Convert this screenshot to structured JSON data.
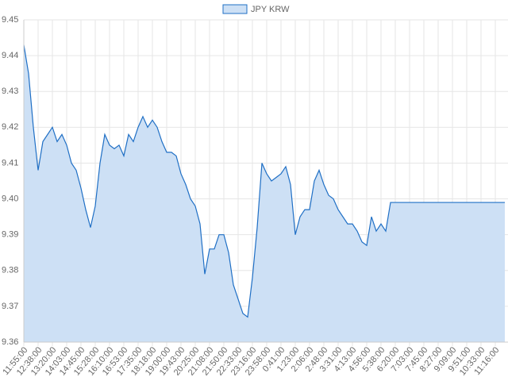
{
  "chart_data": {
    "type": "line",
    "categories": [
      "11:55:00",
      null,
      null,
      "12:38:00",
      null,
      null,
      "13:20:00",
      null,
      null,
      "14:03:00",
      null,
      null,
      "14:45:00",
      null,
      null,
      "15:28:00",
      null,
      null,
      "16:10:00",
      null,
      null,
      "16:53:00",
      null,
      null,
      "17:35:00",
      null,
      null,
      "18:18:00",
      null,
      null,
      "19:00:00",
      null,
      null,
      "19:43:00",
      null,
      null,
      "20:25:00",
      null,
      null,
      "21:08:00",
      null,
      null,
      "21:50:00",
      null,
      null,
      "22:33:00",
      null,
      null,
      "23:16:00",
      null,
      null,
      "23:58:00",
      null,
      null,
      "0:41:00",
      null,
      null,
      "1:23:00",
      null,
      null,
      "2:06:00",
      null,
      null,
      "2:48:00",
      null,
      null,
      "3:31:00",
      null,
      null,
      "4:13:00",
      null,
      null,
      "4:56:00",
      null,
      null,
      "5:38:00",
      null,
      null,
      "6:20:00",
      null,
      null,
      "7:03:00",
      null,
      null,
      "7:45:00",
      null,
      null,
      "8:27:00",
      null,
      null,
      "9:09:00",
      null,
      null,
      "9:51:00",
      null,
      null,
      "10:33:00",
      null,
      null,
      "11:16:00",
      null,
      null
    ],
    "series": [
      {
        "name": "JPY KRW",
        "color": "#1f6fc5",
        "fill_color": "#cde0f5",
        "values": [
          9.443,
          9.435,
          9.42,
          9.408,
          9.416,
          9.418,
          9.42,
          9.416,
          9.418,
          9.415,
          9.41,
          9.408,
          9.403,
          9.397,
          9.392,
          9.398,
          9.41,
          9.418,
          9.415,
          9.414,
          9.415,
          9.412,
          9.418,
          9.416,
          9.42,
          9.423,
          9.42,
          9.422,
          9.42,
          9.416,
          9.413,
          9.413,
          9.412,
          9.407,
          9.404,
          9.4,
          9.398,
          9.393,
          9.379,
          9.386,
          9.386,
          9.39,
          9.39,
          9.385,
          9.376,
          9.372,
          9.368,
          9.367,
          9.378,
          9.392,
          9.41,
          9.407,
          9.405,
          9.406,
          9.407,
          9.409,
          9.404,
          9.39,
          9.395,
          9.397,
          9.397,
          9.405,
          9.408,
          9.404,
          9.401,
          9.4,
          9.397,
          9.395,
          9.393,
          9.393,
          9.391,
          9.388,
          9.387,
          9.395,
          9.391,
          9.393,
          9.391,
          9.399,
          9.399,
          9.399,
          9.399,
          9.399,
          9.399,
          9.399,
          9.399,
          9.399,
          9.399,
          9.399,
          9.399,
          9.399,
          9.399,
          9.399,
          9.399,
          9.399,
          9.399,
          9.399,
          9.399,
          9.399,
          9.399,
          9.399,
          9.399,
          9.399
        ]
      }
    ],
    "ylim": [
      9.36,
      9.45
    ],
    "yticks": [
      9.36,
      9.37,
      9.38,
      9.39,
      {
        "value": 9.4,
        "label": "9.40"
      },
      9.41,
      9.42,
      9.43,
      9.44,
      9.45
    ],
    "grid": true,
    "legend": "top"
  }
}
